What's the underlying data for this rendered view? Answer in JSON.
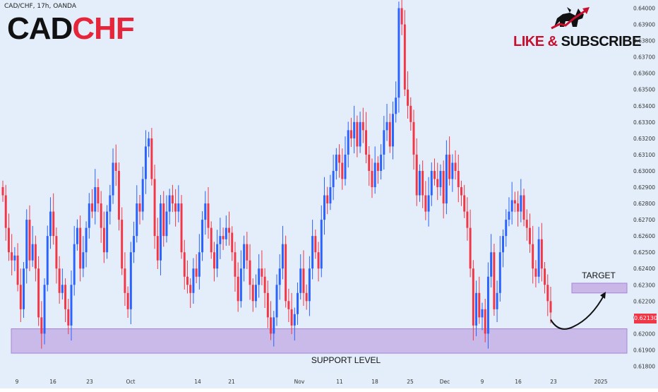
{
  "header": {
    "symbol_info": "CAD/CHF, 17h, OANDA",
    "title_main": "CAD",
    "title_accent": "CHF",
    "brand_label_main": "LIKE & ",
    "brand_label_second": "SUBSCRIBE",
    "brand_icon": "bull-bear-icon"
  },
  "colors": {
    "background": "#e3eefa",
    "up_candle": "#2962ff",
    "down_candle": "#f23645",
    "zone_fill": "#c6b0e6",
    "zone_stroke": "#a883d8",
    "axis_text": "#333333",
    "brand_red": "#c8102e"
  },
  "price_badge": "0.62130",
  "chart_data": {
    "type": "candlestick",
    "title": "CADCHF",
    "x_ticks": [
      "9",
      "16",
      "23",
      "Oct",
      "14",
      "21",
      "Nov",
      "11",
      "18",
      "25",
      "Dec",
      "9",
      "16",
      "23",
      "2025"
    ],
    "y_ticks": [
      "0.64000",
      "0.63900",
      "0.63800",
      "0.63700",
      "0.63600",
      "0.63500",
      "0.63400",
      "0.63300",
      "0.63200",
      "0.63100",
      "0.63000",
      "0.62900",
      "0.62800",
      "0.62700",
      "0.62600",
      "0.62500",
      "0.62400",
      "0.62300",
      "0.62200",
      "0.62100",
      "0.62000",
      "0.61900",
      "0.61800"
    ],
    "ylim": [
      0.6175,
      0.6405
    ],
    "current_price": 0.6213,
    "support_zone": {
      "label": "SUPPORT LEVEL",
      "low": 0.6188,
      "high": 0.6203
    },
    "target_zone": {
      "label": "TARGET",
      "low": 0.6225,
      "high": 0.6231
    },
    "series": [
      {
        "name": "CAD/CHF",
        "close": [
          0.6285,
          0.6265,
          0.625,
          0.6245,
          0.6248,
          0.623,
          0.6215,
          0.624,
          0.627,
          0.6245,
          0.6255,
          0.624,
          0.621,
          0.62,
          0.623,
          0.626,
          0.6275,
          0.626,
          0.624,
          0.6225,
          0.623,
          0.6215,
          0.6205,
          0.623,
          0.6255,
          0.6265,
          0.624,
          0.625,
          0.6265,
          0.628,
          0.6275,
          0.629,
          0.628,
          0.6265,
          0.625,
          0.6275,
          0.6285,
          0.6305,
          0.63,
          0.627,
          0.624,
          0.6225,
          0.6215,
          0.625,
          0.626,
          0.628,
          0.6275,
          0.6295,
          0.6315,
          0.632,
          0.6295,
          0.626,
          0.6245,
          0.628,
          0.626,
          0.6275,
          0.6285,
          0.628,
          0.6275,
          0.628,
          0.625,
          0.6235,
          0.623,
          0.6225,
          0.624,
          0.6235,
          0.625,
          0.627,
          0.628,
          0.6265,
          0.625,
          0.624,
          0.6255,
          0.626,
          0.6258,
          0.6265,
          0.6262,
          0.625,
          0.6235,
          0.622,
          0.624,
          0.6255,
          0.6245,
          0.623,
          0.622,
          0.623,
          0.624,
          0.6235,
          0.6225,
          0.621,
          0.62,
          0.621,
          0.623,
          0.624,
          0.6255,
          0.622,
          0.6215,
          0.6205,
          0.6212,
          0.6225,
          0.624,
          0.6225,
          0.622,
          0.624,
          0.626,
          0.625,
          0.624,
          0.627,
          0.6285,
          0.628,
          0.629,
          0.63,
          0.631,
          0.6305,
          0.6295,
          0.631,
          0.6325,
          0.632,
          0.633,
          0.6315,
          0.633,
          0.6325,
          0.631,
          0.63,
          0.629,
          0.6305,
          0.63,
          0.631,
          0.6325,
          0.633,
          0.6315,
          0.6335,
          0.6345,
          0.64,
          0.639,
          0.635,
          0.634,
          0.633,
          0.631,
          0.6285,
          0.63,
          0.6285,
          0.6275,
          0.6285,
          0.63,
          0.6295,
          0.629,
          0.63,
          0.628,
          0.631,
          0.6295,
          0.6305,
          0.63,
          0.629,
          0.6285,
          0.6275,
          0.6265,
          0.624,
          0.6205,
          0.6225,
          0.621,
          0.6215,
          0.62,
          0.6235,
          0.625,
          0.6215,
          0.6225,
          0.625,
          0.626,
          0.627,
          0.6275,
          0.6282,
          0.628,
          0.6275,
          0.6285,
          0.627,
          0.6265,
          0.6255,
          0.624,
          0.6235,
          0.6258,
          0.624,
          0.623,
          0.622,
          0.6213
        ]
      }
    ],
    "annotations": [
      {
        "text": "TARGET",
        "type": "label"
      },
      {
        "text": "SUPPORT LEVEL",
        "type": "label"
      },
      {
        "type": "arrow",
        "from_price": 0.6206,
        "to_price": 0.6224
      }
    ]
  }
}
